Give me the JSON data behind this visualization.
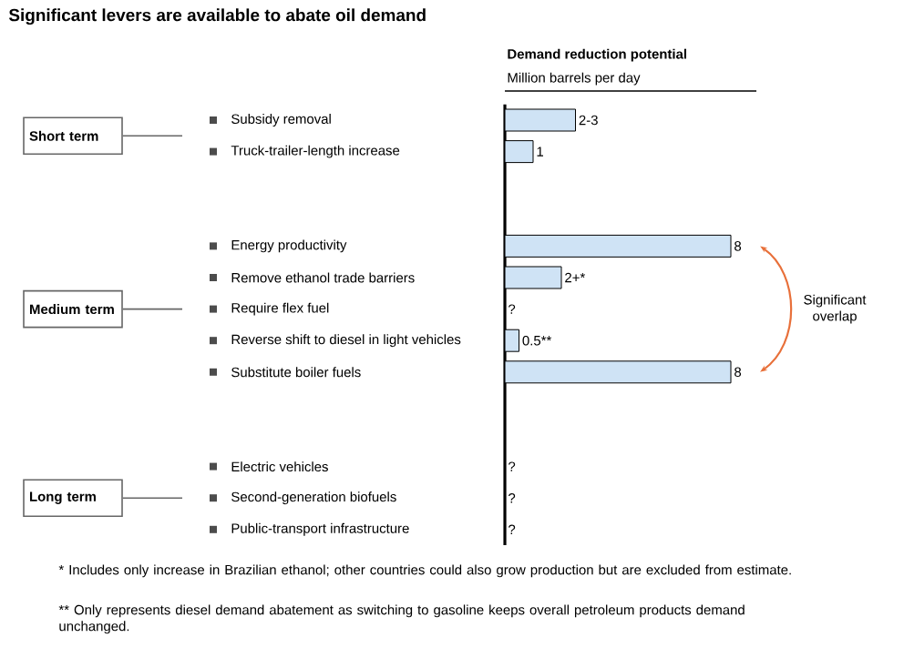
{
  "chart_data": {
    "type": "bar",
    "orientation": "horizontal",
    "title": "Significant levers are available to abate oil demand",
    "subtitle": "Demand reduction potential",
    "xlabel": "Million barrels per day",
    "categories": [
      "Subsidy removal",
      "Truck-trailer-length increase",
      null,
      null,
      "Energy productivity",
      "Remove ethanol trade barriers",
      "Require flex fuel",
      "Reverse shift to diesel in light vehicles",
      "Substitute boiler fuels",
      null,
      null,
      "Electric vehicles",
      "Second-generation biofuels",
      "Public-transport infrastructure"
    ],
    "values": [
      2.5,
      1,
      null,
      null,
      8,
      2,
      null,
      0.5,
      8,
      null,
      null,
      null,
      null,
      null
    ],
    "value_labels": [
      "2-3",
      "1",
      null,
      null,
      "8",
      "2+*",
      "?",
      "0.5**",
      "8",
      null,
      null,
      "?",
      "?",
      "?"
    ],
    "color": "#cfe3f5",
    "annotations": [
      "Short term",
      "Medium term",
      "Long term",
      "Significant overlap",
      "* Includes only increase in Brazilian ethanol; other countries could also grow production but are excluded from estimate.",
      "** Only represents diesel demand abatement as switching to gasoline keeps overall petroleum products demand unchanged."
    ]
  }
}
